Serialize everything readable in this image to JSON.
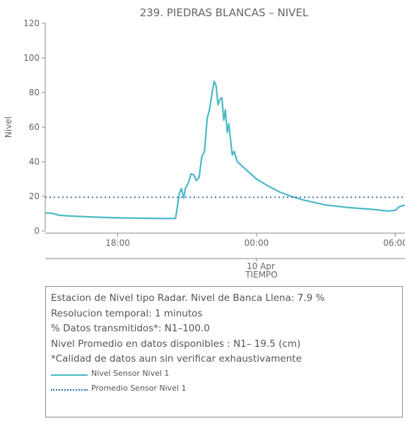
{
  "chart_data": {
    "type": "line",
    "title": "239. PIEDRAS BLANCAS – NIVEL",
    "xlabel": "TIEMPO",
    "ylabel": "Nivel",
    "ylim": [
      0,
      120
    ],
    "yticks": [
      0,
      20,
      40,
      60,
      80,
      100,
      120
    ],
    "xlim": [
      "2025-04-09 14:52",
      "2025-04-10 06:25"
    ],
    "xticks": [
      {
        "t": "2025-04-09 18:00",
        "label": "18:00"
      },
      {
        "t": "2025-04-10 00:00",
        "label": "00:00"
      },
      {
        "t": "2025-04-10 06:00",
        "label": "06:00"
      }
    ],
    "date_label": "10 Apr",
    "grid": false,
    "series": [
      {
        "name": "Nivel Sensor Nivel 1",
        "color": "#4bb8c7",
        "style": "solid",
        "points": [
          [
            "2025-04-09 14:52",
            10.5
          ],
          [
            "2025-04-09 15:10",
            10.2
          ],
          [
            "2025-04-09 15:30",
            9.0
          ],
          [
            "2025-04-09 16:00",
            8.6
          ],
          [
            "2025-04-09 17:00",
            8.0
          ],
          [
            "2025-04-09 18:00",
            7.6
          ],
          [
            "2025-04-09 19:00",
            7.4
          ],
          [
            "2025-04-09 20:00",
            7.2
          ],
          [
            "2025-04-09 20:30",
            7.3
          ],
          [
            "2025-04-09 20:40",
            22.0
          ],
          [
            "2025-04-09 20:45",
            24.5
          ],
          [
            "2025-04-09 20:51",
            19.0
          ],
          [
            "2025-04-09 20:56",
            25.0
          ],
          [
            "2025-04-09 21:03",
            27.5
          ],
          [
            "2025-04-09 21:10",
            33.0
          ],
          [
            "2025-04-09 21:17",
            32.5
          ],
          [
            "2025-04-09 21:24",
            29.0
          ],
          [
            "2025-04-09 21:31",
            31.0
          ],
          [
            "2025-04-09 21:38",
            43.0
          ],
          [
            "2025-04-09 21:45",
            46.0
          ],
          [
            "2025-04-09 21:52",
            65.0
          ],
          [
            "2025-04-09 21:58",
            70.0
          ],
          [
            "2025-04-09 22:05",
            80.0
          ],
          [
            "2025-04-09 22:10",
            86.5
          ],
          [
            "2025-04-09 22:15",
            84.0
          ],
          [
            "2025-04-09 22:20",
            73.0
          ],
          [
            "2025-04-09 22:25",
            76.0
          ],
          [
            "2025-04-09 22:30",
            77.0
          ],
          [
            "2025-04-09 22:35",
            64.0
          ],
          [
            "2025-04-09 22:39",
            70.0
          ],
          [
            "2025-04-09 22:44",
            57.0
          ],
          [
            "2025-04-09 22:48",
            62.0
          ],
          [
            "2025-04-09 22:52",
            54.0
          ],
          [
            "2025-04-09 22:57",
            44.0
          ],
          [
            "2025-04-09 23:02",
            46.0
          ],
          [
            "2025-04-09 23:10",
            40.0
          ],
          [
            "2025-04-09 23:30",
            36.0
          ],
          [
            "2025-04-10 00:00",
            30.0
          ],
          [
            "2025-04-10 00:30",
            26.0
          ],
          [
            "2025-04-10 01:00",
            22.5
          ],
          [
            "2025-04-10 01:30",
            20.0
          ],
          [
            "2025-04-10 02:00",
            18.0
          ],
          [
            "2025-04-10 02:30",
            16.5
          ],
          [
            "2025-04-10 03:00",
            15.0
          ],
          [
            "2025-04-10 04:00",
            13.5
          ],
          [
            "2025-04-10 05:00",
            12.5
          ],
          [
            "2025-04-10 05:40",
            11.5
          ],
          [
            "2025-04-10 06:00",
            12.0
          ],
          [
            "2025-04-10 06:10",
            14.0
          ],
          [
            "2025-04-10 06:25",
            15.0
          ]
        ]
      },
      {
        "name": "Promedio Sensor Nivel 1",
        "color": "#1f6ea8",
        "style": "dotted",
        "value": 19.5
      }
    ]
  },
  "infobox": {
    "lines": [
      "Estacion de Nivel tipo Radar. Nivel de Banca Llena:  7.9 %",
      "Resolucion temporal: 1 minutos",
      "% Datos transmitidos*: N1–100.0",
      "Nivel Promedio en datos disponibles : N1– 19.5 (cm)",
      "*Calidad de datos aun sin verificar exhaustivamente"
    ],
    "legend": [
      {
        "label": "Nivel Sensor Nivel 1",
        "style": "solid"
      },
      {
        "label": "Promedio Sensor Nivel 1",
        "style": "dotted"
      }
    ]
  }
}
